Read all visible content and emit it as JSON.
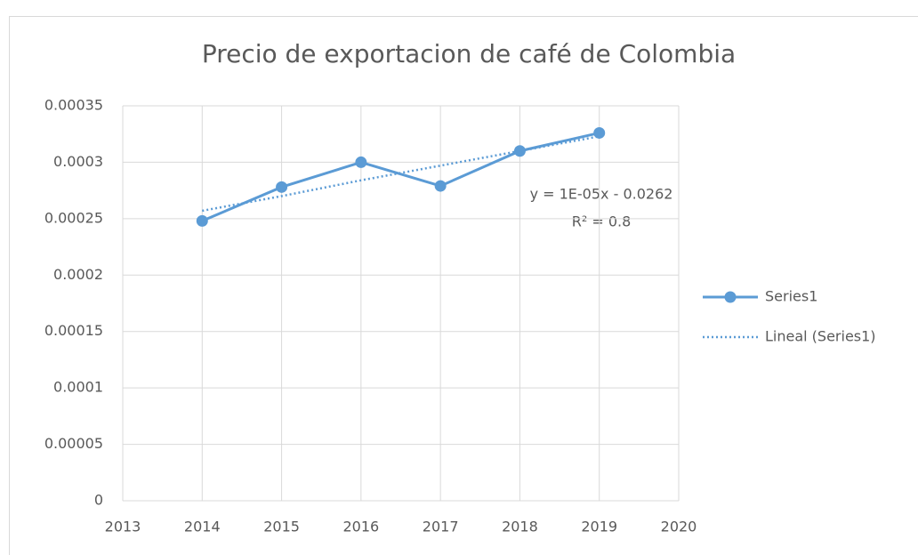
{
  "chart_data": {
    "type": "line",
    "title": "Precio de exportacion de café de Colombia",
    "x": [
      2014,
      2015,
      2016,
      2017,
      2018,
      2019
    ],
    "series": [
      {
        "name": "Series1",
        "color": "#5b9bd5",
        "values": [
          0.000248,
          0.000278,
          0.0003,
          0.000279,
          0.00031,
          0.000326
        ]
      },
      {
        "name": "Lineal (Series1)",
        "color": "#5b9bd5",
        "dashed": true,
        "values": [
          0.000257,
          0.00027,
          0.000284,
          0.000297,
          0.00031,
          0.000323
        ]
      }
    ],
    "annotations": [
      "y = 1E-05x - 0.0262",
      "R² = 0.8"
    ],
    "xlim": [
      2013,
      2020
    ],
    "xticks": [
      2013,
      2014,
      2015,
      2016,
      2017,
      2018,
      2019,
      2020
    ],
    "ylim": [
      0,
      0.00035
    ],
    "yticks": [
      0,
      5e-05,
      0.0001,
      0.00015,
      0.0002,
      0.00025,
      0.0003,
      0.00035
    ],
    "grid": true,
    "legend": "right"
  }
}
